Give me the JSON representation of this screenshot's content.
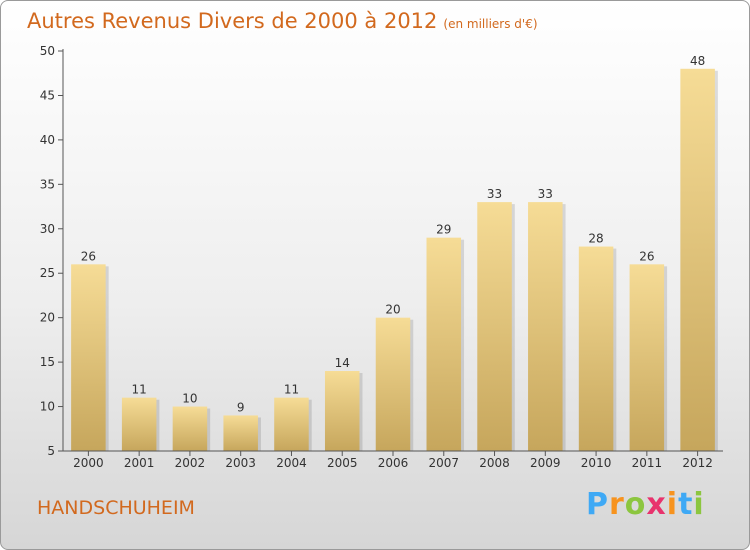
{
  "header": {
    "title": "Autres Revenus Divers de 2000 à 2012",
    "subtitle": "(en milliers d'€)"
  },
  "footer": {
    "place": "HANDSCHUHEIM"
  },
  "brand": {
    "letters": [
      "P",
      "r",
      "o",
      "x",
      "i",
      "t",
      "i"
    ],
    "colors": [
      "#3fa9f5",
      "#f7931e",
      "#8cc63f",
      "#e8336d",
      "#f7931e",
      "#3fa9f5",
      "#8cc63f"
    ]
  },
  "chart_data": {
    "type": "bar",
    "title": "Autres Revenus Divers de 2000 à 2012",
    "categories": [
      "2000",
      "2001",
      "2002",
      "2003",
      "2004",
      "2005",
      "2006",
      "2007",
      "2008",
      "2009",
      "2010",
      "2011",
      "2012"
    ],
    "values": [
      26,
      11,
      10,
      9,
      11,
      14,
      20,
      29,
      33,
      33,
      28,
      26,
      48
    ],
    "data_labels": [
      "26",
      "11",
      "10",
      "9",
      "11",
      "14",
      "20",
      "29",
      "33",
      "33",
      "28",
      "26",
      "48"
    ],
    "yticks": [
      "5",
      "10",
      "15",
      "20",
      "25",
      "30",
      "35",
      "40",
      "45",
      "50"
    ],
    "ylim": [
      5,
      50
    ],
    "grid": false,
    "colors": {
      "bar_top": "#f6dc96",
      "bar_bottom": "#c6a65c",
      "axis": "#555555",
      "text": "#333333"
    }
  }
}
